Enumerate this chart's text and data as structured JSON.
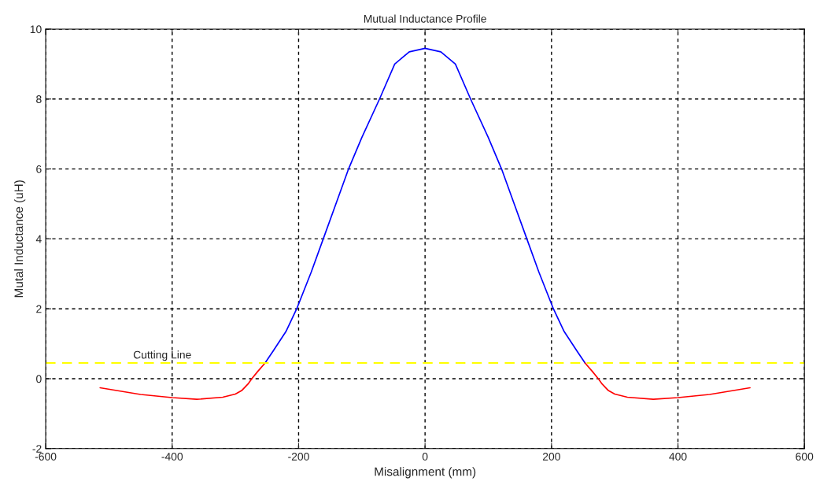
{
  "chart_data": {
    "type": "line",
    "title": "Mutual Inductance Profile",
    "xlabel": "Misalignment (mm)",
    "ylabel": "Mutal Inductance (uH)",
    "series": [
      {
        "color": "#ff0000",
        "x": [
          -514,
          -450,
          -400,
          -361,
          -320,
          -300,
          -290,
          -280,
          -274,
          -265,
          -253
        ],
        "values": [
          -0.26,
          -0.45,
          -0.54,
          -0.59,
          -0.53,
          -0.44,
          -0.34,
          -0.15,
          0,
          0.2,
          0.45
        ]
      },
      {
        "color": "#0000ff",
        "x": [
          -253,
          -240,
          -220,
          -203,
          -180,
          -161,
          -140,
          -121,
          -100,
          -72,
          -48,
          -25,
          0,
          25,
          48,
          72,
          100,
          121,
          140,
          161,
          180,
          203,
          220,
          240,
          253
        ],
        "values": [
          0.45,
          0.8,
          1.35,
          2,
          3.05,
          4,
          5.05,
          6,
          6.9,
          8,
          9,
          9.35,
          9.45,
          9.35,
          9,
          8,
          6.9,
          6,
          5.05,
          4,
          3.05,
          2,
          1.35,
          0.8,
          0.45
        ]
      },
      {
        "color": "#ff0000",
        "x": [
          253,
          265,
          274,
          280,
          290,
          300,
          320,
          361,
          400,
          450,
          514
        ],
        "values": [
          0.45,
          0.2,
          0,
          -0.15,
          -0.34,
          -0.44,
          -0.53,
          -0.59,
          -0.54,
          -0.45,
          -0.26
        ]
      }
    ],
    "ref_lines": [
      {
        "axis": "y",
        "value": 0.45,
        "label": "Cutting Line",
        "color": "#ffff00",
        "line_style": "dashed"
      }
    ],
    "xlim": [
      -600,
      600
    ],
    "xticks": [
      -600,
      -400,
      -200,
      0,
      200,
      400,
      600
    ],
    "ylim": [
      -2,
      10
    ],
    "yticks": [
      -2,
      0,
      2,
      4,
      6,
      8,
      10
    ],
    "grid": true,
    "line_style": "solid",
    "marker": "none",
    "legend": false
  }
}
